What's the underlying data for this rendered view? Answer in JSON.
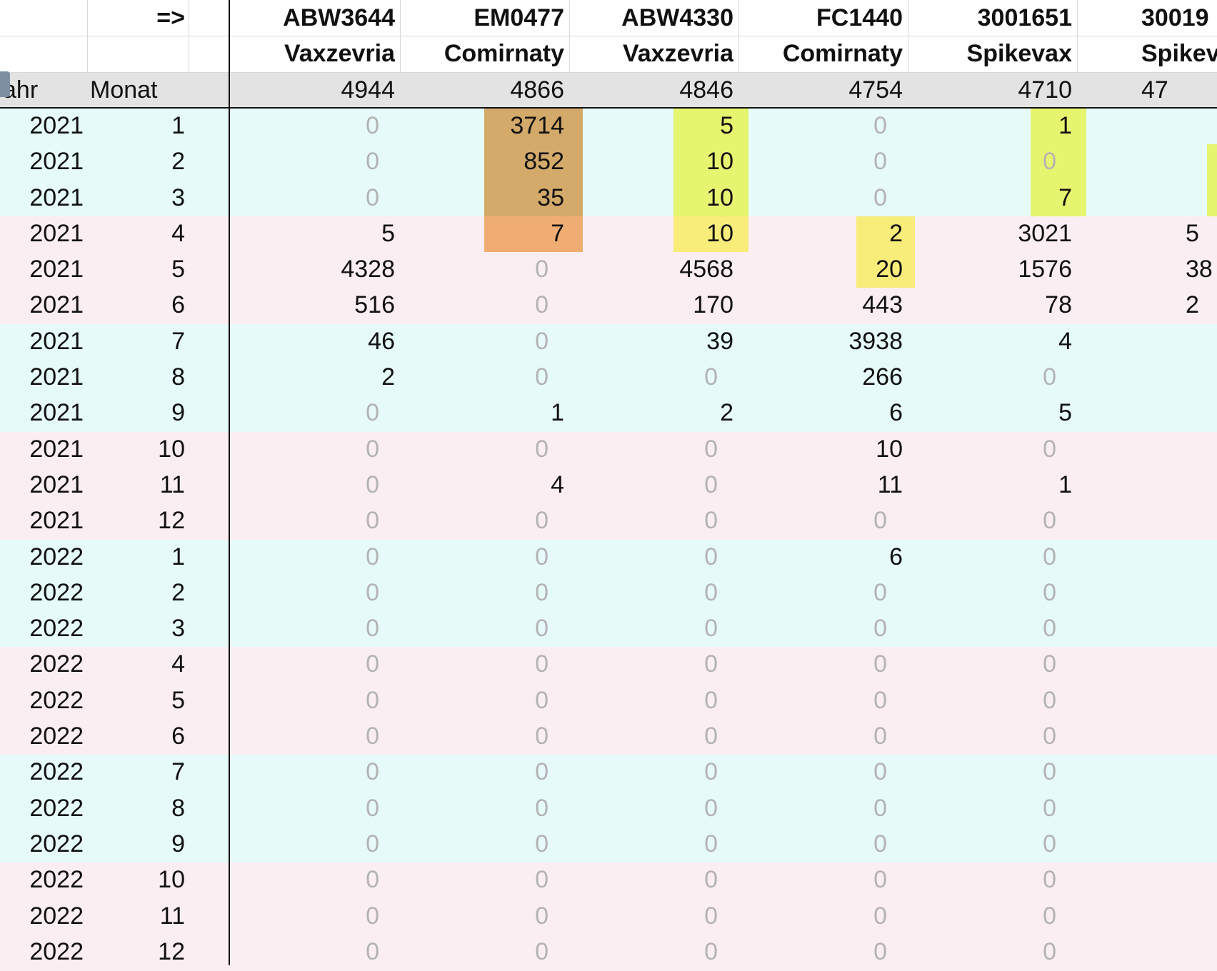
{
  "sheet": {
    "arrow_label": "=>",
    "col_headers": {
      "year": "Jahr",
      "month": "Monat"
    },
    "batches": [
      {
        "batch": "ABW3644",
        "vaccine": "Vaxzevria",
        "total": 4944
      },
      {
        "batch": "EM0477",
        "vaccine": "Comirnaty",
        "total": 4866
      },
      {
        "batch": "ABW4330",
        "vaccine": "Vaxzevria",
        "total": 4846
      },
      {
        "batch": "FC1440",
        "vaccine": "Comirnaty",
        "total": 4754
      },
      {
        "batch": "3001651",
        "vaccine": "Spikevax",
        "total": 4710
      },
      {
        "batch": "30019",
        "vaccine": "Spikev",
        "total": "47"
      }
    ],
    "rows": [
      {
        "year": 2021,
        "month": 1,
        "values": [
          0,
          3714,
          5,
          0,
          1,
          ""
        ]
      },
      {
        "year": 2021,
        "month": 2,
        "values": [
          0,
          852,
          10,
          0,
          0,
          ""
        ]
      },
      {
        "year": 2021,
        "month": 3,
        "values": [
          0,
          35,
          10,
          0,
          7,
          ""
        ]
      },
      {
        "year": 2021,
        "month": 4,
        "values": [
          5,
          7,
          10,
          2,
          3021,
          "5"
        ]
      },
      {
        "year": 2021,
        "month": 5,
        "values": [
          4328,
          0,
          4568,
          20,
          1576,
          "38"
        ]
      },
      {
        "year": 2021,
        "month": 6,
        "values": [
          516,
          0,
          170,
          443,
          78,
          "2"
        ]
      },
      {
        "year": 2021,
        "month": 7,
        "values": [
          46,
          0,
          39,
          3938,
          4,
          ""
        ]
      },
      {
        "year": 2021,
        "month": 8,
        "values": [
          2,
          0,
          0,
          266,
          0,
          ""
        ]
      },
      {
        "year": 2021,
        "month": 9,
        "values": [
          0,
          1,
          2,
          6,
          5,
          ""
        ]
      },
      {
        "year": 2021,
        "month": 10,
        "values": [
          0,
          0,
          0,
          10,
          0,
          ""
        ]
      },
      {
        "year": 2021,
        "month": 11,
        "values": [
          0,
          4,
          0,
          11,
          1,
          ""
        ]
      },
      {
        "year": 2021,
        "month": 12,
        "values": [
          0,
          0,
          0,
          0,
          0,
          ""
        ]
      },
      {
        "year": 2022,
        "month": 1,
        "values": [
          0,
          0,
          0,
          6,
          0,
          ""
        ]
      },
      {
        "year": 2022,
        "month": 2,
        "values": [
          0,
          0,
          0,
          0,
          0,
          ""
        ]
      },
      {
        "year": 2022,
        "month": 3,
        "values": [
          0,
          0,
          0,
          0,
          0,
          ""
        ]
      },
      {
        "year": 2022,
        "month": 4,
        "values": [
          0,
          0,
          0,
          0,
          0,
          ""
        ]
      },
      {
        "year": 2022,
        "month": 5,
        "values": [
          0,
          0,
          0,
          0,
          0,
          ""
        ]
      },
      {
        "year": 2022,
        "month": 6,
        "values": [
          0,
          0,
          0,
          0,
          0,
          ""
        ]
      },
      {
        "year": 2022,
        "month": 7,
        "values": [
          0,
          0,
          0,
          0,
          0,
          ""
        ]
      },
      {
        "year": 2022,
        "month": 8,
        "values": [
          0,
          0,
          0,
          0,
          0,
          ""
        ]
      },
      {
        "year": 2022,
        "month": 9,
        "values": [
          0,
          0,
          0,
          0,
          0,
          ""
        ]
      },
      {
        "year": 2022,
        "month": 10,
        "values": [
          0,
          0,
          0,
          0,
          0,
          ""
        ]
      },
      {
        "year": 2022,
        "month": 11,
        "values": [
          0,
          0,
          0,
          0,
          0,
          ""
        ]
      },
      {
        "year": 2022,
        "month": 12,
        "values": [
          0,
          0,
          0,
          0,
          0,
          ""
        ]
      }
    ],
    "colors": {
      "quarter_odd": "#e6fafa",
      "quarter_even": "#fbeef2",
      "total_row": "#e3e3e3",
      "hl_brown": "#d4aa6a",
      "hl_orange": "#f0ad73",
      "hl_lime": "#e6f570",
      "hl_yellow": "#f8ec7a"
    }
  }
}
